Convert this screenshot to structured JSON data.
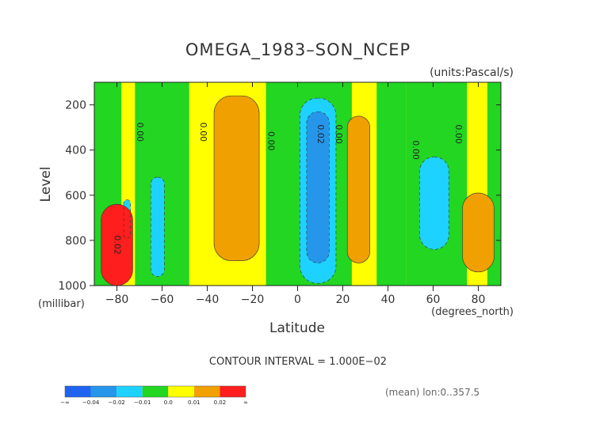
{
  "chart_data": {
    "type": "contour",
    "title": "OMEGA_1983–SON_NCEP",
    "units_note": "(units:Pascal/s)",
    "xlabel": "Latitude",
    "xunit_note": "(degrees_north)",
    "ylabel": "Level",
    "yunit_note": "(millibar)",
    "xlim": [
      -90,
      90
    ],
    "ylim": [
      1000,
      100
    ],
    "xticks": [
      -80,
      -60,
      -40,
      -20,
      0,
      20,
      40,
      60,
      80
    ],
    "xtick_labels": [
      "−80",
      "−60",
      "−40",
      "−20",
      "0",
      "20",
      "40",
      "60",
      "80"
    ],
    "yticks": [
      200,
      400,
      600,
      800,
      1000
    ],
    "ytick_labels": [
      "200",
      "400",
      "600",
      "800",
      "1000"
    ],
    "contour_interval_text": "CONTOUR INTERVAL = 1.000E−02",
    "footnote": "(mean) lon:0..357.5",
    "colorbar": {
      "colors": [
        "#1e64f0",
        "#2596ea",
        "#1ed2ff",
        "#22d622",
        "#ffff00",
        "#f0a000",
        "#ff1e1e"
      ],
      "labels": [
        "−∞",
        "−0.04",
        "−0.02",
        "−0.01",
        "0.0",
        "0.01",
        "0.02",
        "∞"
      ]
    },
    "background_level": "0.0 to 0.01",
    "regions": [
      {
        "level": "0.0 to 0.01",
        "color": "#ffff00",
        "lat": [
          -90,
          90
        ],
        "p": [
          100,
          1000
        ]
      },
      {
        "level": "-0.01 to 0.0",
        "color": "#22d622",
        "lat": [
          -90,
          -78
        ],
        "p": [
          100,
          1000
        ]
      },
      {
        "level": "-0.01 to 0.0",
        "color": "#22d622",
        "lat": [
          -72,
          -48
        ],
        "p": [
          100,
          1000
        ]
      },
      {
        "level": "-0.01 to 0.0",
        "color": "#22d622",
        "lat": [
          -14,
          2
        ],
        "p": [
          100,
          1000
        ]
      },
      {
        "level": "-0.01 to 0.0",
        "color": "#22d622",
        "lat": [
          1,
          19
        ],
        "p": [
          100,
          1000
        ]
      },
      {
        "level": "-0.01 to 0.0",
        "color": "#22d622",
        "lat": [
          18,
          24
        ],
        "p": [
          100,
          1000
        ]
      },
      {
        "level": "-0.01 to 0.0",
        "color": "#22d622",
        "lat": [
          35,
          48
        ],
        "p": [
          100,
          1000
        ]
      },
      {
        "level": "-0.01 to 0.0",
        "color": "#22d622",
        "lat": [
          48,
          75
        ],
        "p": [
          100,
          1000
        ]
      },
      {
        "level": "-0.01 to 0.0",
        "color": "#22d622",
        "lat": [
          84,
          90
        ],
        "p": [
          100,
          1000
        ]
      },
      {
        "level": "0.01 to 0.02",
        "color": "#f0a000",
        "lat": [
          -37,
          -17
        ],
        "p": [
          160,
          890
        ]
      },
      {
        "level": "0.01 to 0.02",
        "color": "#f0a000",
        "lat": [
          22,
          32
        ],
        "p": [
          250,
          900
        ]
      },
      {
        "level": "0.01 to 0.02",
        "color": "#f0a000",
        "lat": [
          73,
          87
        ],
        "p": [
          590,
          940
        ]
      },
      {
        "level": "-0.02 to -0.01",
        "color": "#1ed2ff",
        "lat": [
          -65,
          -59
        ],
        "p": [
          520,
          960
        ]
      },
      {
        "level": "-0.02 to -0.01",
        "color": "#1ed2ff",
        "lat": [
          1,
          17
        ],
        "p": [
          170,
          990
        ]
      },
      {
        "level": "-0.02 to -0.01",
        "color": "#1ed2ff",
        "lat": [
          54,
          67
        ],
        "p": [
          430,
          840
        ]
      },
      {
        "level": "-0.02 to -0.01",
        "color": "#1ed2ff",
        "lat": [
          -77,
          -74
        ],
        "p": [
          620,
          790
        ]
      },
      {
        "level": "-0.04 to -0.02",
        "color": "#2596ea",
        "lat": [
          4,
          14
        ],
        "p": [
          230,
          900
        ]
      },
      {
        "level": "0.02 and above",
        "color": "#ff1e1e",
        "lat": [
          -87,
          -73
        ],
        "p": [
          640,
          1000
        ]
      }
    ],
    "contour_labels": [
      {
        "text": "0.00",
        "lat": -71,
        "p": 320
      },
      {
        "text": "0.00",
        "lat": -43,
        "p": 320
      },
      {
        "text": "0.00",
        "lat": -13,
        "p": 360
      },
      {
        "text": "0.02",
        "lat": 9,
        "p": 330
      },
      {
        "text": "0.00",
        "lat": 17,
        "p": 330
      },
      {
        "text": "0.00",
        "lat": 51,
        "p": 400
      },
      {
        "text": "0.00",
        "lat": 70,
        "p": 330
      },
      {
        "text": "0.02",
        "lat": -81,
        "p": 820
      }
    ]
  }
}
